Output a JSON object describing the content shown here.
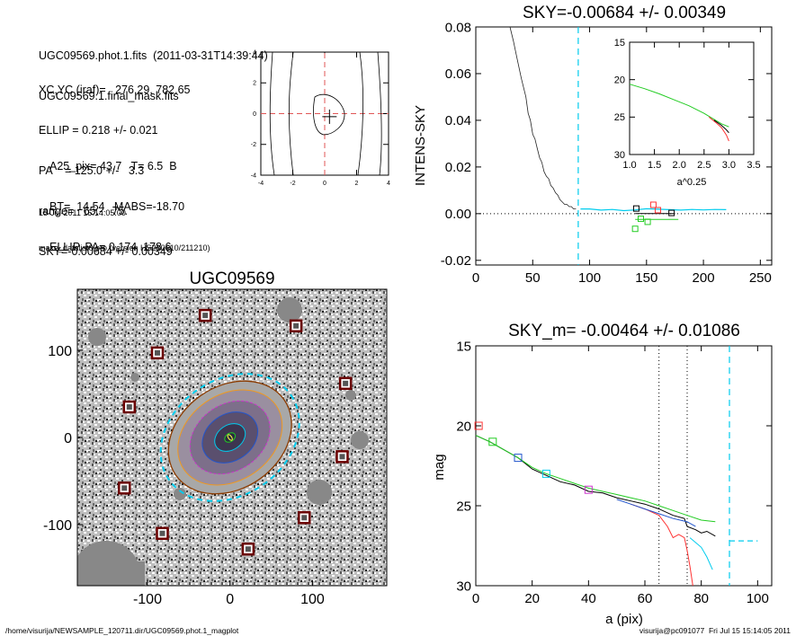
{
  "info": {
    "file_line": "UGC09569.phot.1.fits  (2011-03-31T14:39:44)",
    "mask_line": "UGC09569.1.final_mask.fits",
    "xcyc_line": "XC,YC (iraf)=   276.29, 782.65",
    "ellip_line": "ELLIP = 0.218 +/- 0.021",
    "pa_line": "PA    = 125.0 +/-   3.3",
    "range_line": "range=   65.-   75.",
    "sky_line": "SKY=-0.00684 +/- 0.00349",
    "a25_line": "A25_pix= 43.7   T= 6.5  B",
    "bt_line": "BT=  14.54   MABS=-18.70",
    "ellip_pa_line": "ELLIP, PA= 0.174  178.6",
    "date_line": "15-Jul-2011 15:14:05.00",
    "prog_line": "make_datalist0.pro (version HS230610/211210)"
  },
  "footer": {
    "path": "/home/visurija/NEWSAMPLE_120711.dir/UGC09569.phot.1_magplot",
    "stamp": "visurija@pc091077  Fri Jul 15 15:14:05 2011"
  },
  "colors": {
    "cyan": "#00ccee",
    "red": "#ff3333",
    "green": "#22cc22",
    "blue": "#2255cc",
    "magenta": "#cc33cc",
    "orange": "#ee9922",
    "mask": "#888888",
    "brown": "#8b3b00"
  },
  "chart_data": [
    {
      "id": "center_contour",
      "type": "line",
      "title": "",
      "xlabel": "",
      "ylabel": "",
      "xlim": [
        -4,
        4
      ],
      "ylim": [
        -4,
        4
      ],
      "xticks": [
        "-4",
        "-2",
        "0",
        "2",
        "4"
      ],
      "yticks": [
        "-4",
        "-2",
        "0",
        "2",
        "4"
      ],
      "center": [
        0.3,
        -0.2
      ]
    },
    {
      "id": "sky_profile",
      "type": "line",
      "title": "SKY=-0.00684 +/- 0.00349",
      "xlabel": "",
      "ylabel": "INTENS-SKY",
      "xlim": [
        0,
        260
      ],
      "ylim": [
        -0.022,
        0.08
      ],
      "xticks": [
        "0",
        "50",
        "100",
        "150",
        "200",
        "250"
      ],
      "yticks": [
        "-0.02",
        "0.00",
        "0.02",
        "0.04",
        "0.06",
        "0.08"
      ],
      "sky_marker_x": 90,
      "series": [
        {
          "x": [
            30,
            33,
            36,
            40,
            44,
            46,
            48,
            50,
            52,
            54,
            56,
            58,
            60,
            62,
            64,
            66,
            68,
            70,
            72,
            74,
            76,
            78,
            80,
            82,
            84,
            86,
            88
          ],
          "y": [
            0.08,
            0.074,
            0.067,
            0.058,
            0.05,
            0.043,
            0.04,
            0.034,
            0.032,
            0.028,
            0.024,
            0.022,
            0.018,
            0.016,
            0.015,
            0.012,
            0.011,
            0.009,
            0.008,
            0.006,
            0.005,
            0.004,
            0.004,
            0.003,
            0.003,
            0.002,
            0.002
          ]
        },
        {
          "x": [
            92,
            100,
            110,
            120,
            130,
            140,
            150,
            160,
            170,
            180,
            190,
            200,
            210,
            220
          ],
          "y": [
            0.002,
            0.002,
            0.0015,
            0.0018,
            0.0013,
            0.0016,
            0.0021,
            0.0019,
            0.0017,
            0.0015,
            0.0018,
            0.0016,
            0.0018,
            0.0017
          ]
        },
        {
          "x": [
            140,
            175
          ],
          "y": [
            0.0,
            0.0
          ]
        },
        {
          "x": [
            140,
            178
          ],
          "y": [
            -0.0025,
            -0.0025
          ]
        }
      ],
      "boxes": [
        {
          "x": 140,
          "y": -0.0065,
          "color": "green"
        },
        {
          "x": 145,
          "y": -0.0022,
          "color": "green"
        },
        {
          "x": 151,
          "y": -0.0035,
          "color": "green"
        },
        {
          "x": 141,
          "y": 0.0022,
          "color": "black"
        },
        {
          "x": 156,
          "y": 0.0038,
          "color": "red"
        },
        {
          "x": 160,
          "y": 0.0015,
          "color": "red"
        },
        {
          "x": 172,
          "y": 0.0003,
          "color": "black"
        }
      ]
    },
    {
      "id": "sky_inset",
      "type": "line",
      "title": "",
      "xlabel": "a^0.25",
      "ylabel": "",
      "xlim": [
        1.0,
        3.5
      ],
      "ylim": [
        15,
        30
      ],
      "xticks": [
        "1.0",
        "1.5",
        "2.0",
        "2.5",
        "3.0",
        "3.5"
      ],
      "yticks": [
        "15",
        "20",
        "25",
        "30"
      ],
      "series": [
        {
          "color": "green",
          "x": [
            1.0,
            1.3,
            1.6,
            1.9,
            2.2,
            2.5,
            2.7,
            2.85,
            3.0
          ],
          "y": [
            20.6,
            21.2,
            21.9,
            22.7,
            23.5,
            24.5,
            25.3,
            25.9,
            26.3
          ]
        },
        {
          "color": "red",
          "x": [
            2.6,
            2.75,
            2.85,
            2.95,
            3.0
          ],
          "y": [
            25.0,
            25.8,
            26.4,
            27.4,
            28.2
          ]
        },
        {
          "color": "black",
          "x": [
            2.7,
            2.85,
            2.95,
            3.0
          ],
          "y": [
            25.4,
            26.1,
            26.7,
            27.1
          ]
        }
      ]
    },
    {
      "id": "image_panel",
      "type": "scatter",
      "title": "UGC09569",
      "xlabel": "",
      "ylabel": "",
      "xlim": [
        -185,
        190
      ],
      "ylim": [
        -170,
        170
      ],
      "xticks": [
        "-100",
        "0",
        "100"
      ],
      "yticks": [
        "-100",
        "0",
        "100"
      ],
      "galaxy_center": [
        0,
        0
      ],
      "ellipse_a": 80,
      "ellipse_b": 62,
      "ellipse_pa": 125,
      "outer_a": 90,
      "outer_b": 70,
      "masked_stars": [
        {
          "x": -30,
          "y": 140
        },
        {
          "x": 80,
          "y": 128
        },
        {
          "x": -88,
          "y": 97
        },
        {
          "x": 140,
          "y": 62
        },
        {
          "x": -122,
          "y": 35
        },
        {
          "x": 136,
          "y": -22
        },
        {
          "x": -128,
          "y": -58
        },
        {
          "x": 90,
          "y": -92
        },
        {
          "x": -82,
          "y": -110
        },
        {
          "x": 22,
          "y": -128
        }
      ]
    },
    {
      "id": "mag_profile",
      "type": "line",
      "title": "SKY_m= -0.00464 +/- 0.01086",
      "xlabel": "a (pix)",
      "ylabel": "mag",
      "xlim": [
        0,
        105
      ],
      "ylim": [
        15,
        30
      ],
      "xticks": [
        "0",
        "20",
        "40",
        "60",
        "80",
        "100"
      ],
      "yticks": [
        "15",
        "20",
        "25",
        "30"
      ],
      "vlines": [
        {
          "x": 65,
          "style": "dotted",
          "color": "black"
        },
        {
          "x": 75,
          "style": "dotted",
          "color": "black"
        },
        {
          "x": 90,
          "style": "dashed",
          "color": "cyan"
        }
      ],
      "sky_level": {
        "x": [
          90,
          100
        ],
        "y": 27.2
      },
      "series": [
        {
          "color": "black",
          "x": [
            0,
            5,
            10,
            15,
            20,
            25,
            30,
            35,
            40,
            45,
            50,
            55,
            60,
            65,
            70,
            74,
            75,
            78,
            80,
            82,
            85
          ],
          "y": [
            20.6,
            21.0,
            21.5,
            22.0,
            22.7,
            23.1,
            23.5,
            23.7,
            24.1,
            24.2,
            24.5,
            24.7,
            24.9,
            25.2,
            25.6,
            25.8,
            26.3,
            26.5,
            26.7,
            26.6,
            26.9
          ]
        },
        {
          "color": "green",
          "x": [
            0,
            5,
            10,
            15,
            20,
            25,
            30,
            35,
            40,
            45,
            50,
            55,
            60,
            65,
            70,
            75,
            80,
            85
          ],
          "y": [
            20.6,
            21.0,
            21.5,
            22.0,
            22.6,
            23.0,
            23.3,
            23.6,
            23.9,
            24.1,
            24.3,
            24.5,
            24.7,
            25.0,
            25.3,
            25.6,
            25.9,
            26.0
          ]
        },
        {
          "color": "red",
          "x": [
            55,
            60,
            65,
            68,
            70,
            72,
            74,
            75,
            76,
            77
          ],
          "y": [
            24.9,
            25.2,
            25.6,
            26.3,
            27.0,
            26.8,
            27.0,
            27.8,
            28.8,
            30.0
          ]
        },
        {
          "color": "blue",
          "x": [
            50,
            55,
            60,
            65,
            70,
            75,
            78
          ],
          "y": [
            24.6,
            24.9,
            25.2,
            25.5,
            25.8,
            26.0,
            26.3
          ]
        },
        {
          "color": "cyan",
          "x": [
            76,
            80,
            82,
            84
          ],
          "y": [
            27.0,
            27.6,
            28.2,
            29.0
          ]
        }
      ],
      "boxes": [
        {
          "x": 1,
          "y": 20.0,
          "color": "red"
        },
        {
          "x": 6,
          "y": 21.0,
          "color": "green"
        },
        {
          "x": 15,
          "y": 22.0,
          "color": "blue"
        },
        {
          "x": 25,
          "y": 23.0,
          "color": "cyan"
        },
        {
          "x": 40,
          "y": 24.0,
          "color": "magenta"
        }
      ]
    }
  ]
}
